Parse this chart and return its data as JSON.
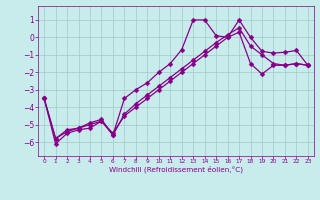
{
  "xlabel": "Windchill (Refroidissement éolien,°C)",
  "background_color": "#c8ecec",
  "grid_color": "#a0c8c8",
  "line_color": "#880088",
  "xlim": [
    -0.5,
    23.5
  ],
  "ylim": [
    -6.8,
    1.8
  ],
  "xticks": [
    0,
    1,
    2,
    3,
    4,
    5,
    6,
    7,
    8,
    9,
    10,
    11,
    12,
    13,
    14,
    15,
    16,
    17,
    18,
    19,
    20,
    21,
    22,
    23
  ],
  "yticks": [
    -6,
    -5,
    -4,
    -3,
    -2,
    -1,
    0,
    1
  ],
  "series1_x": [
    0,
    1,
    2,
    3,
    4,
    5,
    6,
    7,
    8,
    9,
    10,
    11,
    12,
    13,
    14,
    15,
    16,
    17,
    18,
    19,
    20,
    21,
    22,
    23
  ],
  "series1_y": [
    -3.5,
    -5.8,
    -5.3,
    -5.2,
    -4.9,
    -4.7,
    -5.6,
    -3.5,
    -3.0,
    -2.6,
    -2.0,
    -1.5,
    -0.7,
    1.0,
    1.0,
    0.1,
    0.0,
    1.0,
    0.0,
    -0.8,
    -0.9,
    -0.85,
    -0.75,
    -1.6
  ],
  "series2_x": [
    0,
    1,
    2,
    3,
    4,
    5,
    6,
    7,
    8,
    9,
    10,
    11,
    12,
    13,
    14,
    15,
    16,
    17,
    18,
    19,
    20,
    21,
    22,
    23
  ],
  "series2_y": [
    -3.5,
    -6.1,
    -5.5,
    -5.3,
    -5.2,
    -4.8,
    -5.5,
    -4.5,
    -4.0,
    -3.5,
    -3.0,
    -2.5,
    -2.0,
    -1.5,
    -1.0,
    -0.5,
    0.0,
    0.3,
    -1.5,
    -2.1,
    -1.6,
    -1.6,
    -1.5,
    -1.6
  ],
  "series3_x": [
    0,
    1,
    2,
    3,
    4,
    5,
    6,
    7,
    8,
    9,
    10,
    11,
    12,
    13,
    14,
    15,
    16,
    17,
    18,
    19,
    20,
    21,
    22,
    23
  ],
  "series3_y": [
    -3.5,
    -5.8,
    -5.4,
    -5.2,
    -5.0,
    -4.8,
    -5.6,
    -4.4,
    -3.8,
    -3.3,
    -2.8,
    -2.3,
    -1.8,
    -1.3,
    -0.8,
    -0.3,
    0.15,
    0.55,
    -0.5,
    -1.0,
    -1.5,
    -1.6,
    -1.5,
    -1.6
  ]
}
